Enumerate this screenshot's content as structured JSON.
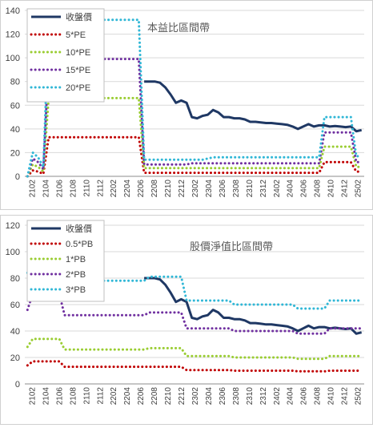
{
  "chart_data": [
    {
      "type": "line",
      "title": "本益比區間帶",
      "x_tick_labels": [
        "2102",
        "2104",
        "2106",
        "2108",
        "2110",
        "2112",
        "2202",
        "2204",
        "2206",
        "2208",
        "2210",
        "2212",
        "2302",
        "2304",
        "2306",
        "2308",
        "2310",
        "2312",
        "2402",
        "2404",
        "2406",
        "2408",
        "2410",
        "2412",
        "2502"
      ],
      "y_ticks": [
        0,
        20,
        40,
        60,
        80,
        100,
        120,
        140
      ],
      "ylim": [
        0,
        140
      ],
      "grid": true,
      "legend_position": "top-left",
      "series": [
        {
          "name": "收盤價",
          "color": "#1f3864",
          "style": "solid",
          "values": [
            null,
            null,
            null,
            null,
            null,
            null,
            null,
            null,
            null,
            null,
            null,
            null,
            null,
            null,
            null,
            null,
            null,
            null,
            null,
            null,
            null,
            null,
            80,
            80,
            80,
            79,
            75,
            69,
            62,
            64,
            62,
            50,
            49,
            51,
            52,
            56,
            54,
            50,
            50,
            49,
            49,
            48,
            46,
            46,
            45.5,
            45,
            45,
            44.5,
            44,
            43.5,
            42,
            40,
            42,
            44,
            42,
            43,
            43,
            42,
            42.5,
            42,
            41.5,
            42,
            38,
            39
          ]
        },
        {
          "name": "5*PE",
          "color": "#c00000",
          "style": "dotted",
          "values": [
            0,
            5,
            4,
            2,
            33,
            33,
            33,
            33,
            33,
            33,
            33,
            33,
            33,
            33,
            33,
            33,
            33,
            33,
            33,
            33,
            33,
            33,
            3,
            3,
            3,
            3,
            3,
            3,
            3,
            3,
            3,
            3,
            3,
            3,
            3,
            3,
            3,
            3,
            3,
            3,
            3,
            3,
            3,
            3,
            3,
            3,
            3,
            3,
            3,
            3,
            3,
            3,
            3,
            3,
            3,
            3,
            12,
            12,
            12,
            12,
            12,
            12,
            4,
            4
          ]
        },
        {
          "name": "10*PE",
          "color": "#9acd32",
          "style": "dotted",
          "values": [
            0,
            10,
            8,
            4,
            66,
            66,
            66,
            66,
            66,
            66,
            66,
            66,
            66,
            66,
            66,
            66,
            66,
            66,
            66,
            66,
            66,
            66,
            7,
            7,
            7,
            7,
            7,
            7,
            7,
            7,
            7,
            7,
            7,
            7,
            7,
            7,
            7,
            7,
            7,
            7,
            7,
            7,
            7,
            7,
            7,
            7,
            7,
            7,
            7,
            7,
            7,
            7,
            7,
            7,
            7,
            7,
            25,
            25,
            25,
            25,
            25,
            25,
            8,
            8
          ]
        },
        {
          "name": "15*PE",
          "color": "#7030a0",
          "style": "dotted",
          "values": [
            0,
            15,
            12,
            6,
            99,
            99,
            99,
            99,
            99,
            99,
            99,
            99,
            99,
            99,
            99,
            99,
            99,
            99,
            99,
            99,
            99,
            99,
            10,
            10,
            10,
            10,
            10,
            10,
            10,
            10,
            10,
            11,
            11,
            11,
            11,
            11,
            11,
            11,
            11,
            11,
            11,
            11,
            11,
            11,
            11,
            11,
            11,
            11,
            11,
            11,
            11,
            11,
            11,
            11,
            11,
            11,
            37,
            37,
            37,
            37,
            37,
            37,
            12,
            12
          ]
        },
        {
          "name": "20*PE",
          "color": "#31b7d6",
          "style": "dotted",
          "values": [
            0,
            20,
            16,
            8,
            132,
            132,
            132,
            132,
            132,
            132,
            132,
            132,
            132,
            132,
            132,
            132,
            132,
            132,
            132,
            132,
            132,
            132,
            14,
            14,
            14,
            14,
            14,
            14,
            14,
            14,
            14,
            14,
            14,
            14,
            15,
            16,
            16,
            16,
            16,
            16,
            16,
            16,
            16,
            16,
            16,
            16,
            16,
            16,
            16,
            16,
            16,
            16,
            16,
            16,
            16,
            16,
            50,
            50,
            50,
            50,
            50,
            50,
            17,
            17
          ]
        }
      ]
    },
    {
      "type": "line",
      "title": "股價淨值比區間帶",
      "x_tick_labels": [
        "2102",
        "2104",
        "2106",
        "2108",
        "2110",
        "2112",
        "2202",
        "2204",
        "2206",
        "2208",
        "2210",
        "2212",
        "2302",
        "2304",
        "2306",
        "2308",
        "2310",
        "2312",
        "2402",
        "2404",
        "2406",
        "2408",
        "2410",
        "2412",
        "2502"
      ],
      "y_ticks": [
        0,
        20,
        40,
        60,
        80,
        100,
        120
      ],
      "ylim": [
        0,
        120
      ],
      "grid": true,
      "legend_position": "top-left",
      "series": [
        {
          "name": "收盤價",
          "color": "#1f3864",
          "style": "solid",
          "values": [
            null,
            null,
            null,
            null,
            null,
            null,
            null,
            null,
            null,
            null,
            null,
            null,
            null,
            null,
            null,
            null,
            null,
            null,
            null,
            null,
            null,
            null,
            80,
            80,
            80,
            79,
            75,
            69,
            62,
            64,
            62,
            50,
            49,
            51,
            52,
            56,
            54,
            50,
            50,
            49,
            49,
            48,
            46,
            46,
            45.5,
            45,
            45,
            44.5,
            44,
            43.5,
            42,
            40,
            42,
            44,
            42,
            43,
            43,
            42,
            42.5,
            42,
            41.5,
            42,
            38,
            39
          ]
        },
        {
          "name": "0.5*PB",
          "color": "#c00000",
          "style": "dotted",
          "values": [
            14,
            17,
            17,
            17,
            17,
            17,
            17,
            13,
            13,
            13,
            13,
            13,
            13,
            13,
            13,
            13,
            13,
            13,
            13,
            13,
            13,
            13,
            13,
            13,
            13,
            13,
            13,
            13,
            13,
            13,
            10.5,
            10.5,
            10.5,
            10.5,
            10.5,
            10.5,
            10.5,
            10.5,
            10.5,
            10,
            10,
            10,
            10,
            10,
            10,
            10,
            10,
            10,
            10,
            10,
            10,
            9.5,
            9.5,
            9.5,
            9.5,
            9.5,
            9.5,
            10,
            10,
            10,
            10,
            10,
            10,
            10
          ]
        },
        {
          "name": "1*PB",
          "color": "#9acd32",
          "style": "dotted",
          "values": [
            28,
            34,
            34,
            34,
            34,
            34,
            34,
            26,
            26,
            26,
            26,
            26,
            26,
            26,
            26,
            26,
            26,
            26,
            26,
            26,
            26,
            26,
            26,
            27,
            27,
            27,
            27,
            27,
            27,
            27,
            21,
            21,
            21,
            21,
            21,
            21,
            21,
            21,
            21,
            20,
            20,
            20,
            20,
            20,
            20,
            20,
            20,
            20,
            20,
            20,
            20,
            19,
            19,
            19,
            19,
            19,
            19,
            21,
            21,
            21,
            21,
            21,
            21,
            21
          ]
        },
        {
          "name": "2*PB",
          "color": "#7030a0",
          "style": "dotted",
          "values": [
            56,
            68,
            68,
            68,
            68,
            68,
            68,
            52,
            52,
            52,
            52,
            52,
            52,
            52,
            52,
            52,
            52,
            52,
            52,
            52,
            52,
            52,
            52,
            54,
            54,
            54,
            54,
            54,
            54,
            54,
            42,
            42,
            42,
            42,
            42,
            42,
            42,
            42,
            42,
            40,
            40,
            40,
            40,
            40,
            40,
            40,
            40,
            40,
            40,
            40,
            40,
            38,
            38,
            38,
            38,
            38,
            38,
            42,
            42,
            42,
            42,
            42,
            42,
            42
          ]
        },
        {
          "name": "3*PB",
          "color": "#31b7d6",
          "style": "dotted",
          "values": [
            84,
            102,
            102,
            102,
            102,
            102,
            102,
            78,
            78,
            78,
            78,
            78,
            78,
            78,
            78,
            78,
            78,
            78,
            78,
            78,
            78,
            78,
            78,
            81,
            81,
            81,
            81,
            81,
            81,
            81,
            63,
            63,
            63,
            63,
            63,
            63,
            63,
            63,
            63,
            60,
            60,
            60,
            60,
            60,
            60,
            60,
            60,
            60,
            60,
            60,
            60,
            57,
            57,
            57,
            57,
            57,
            57,
            63,
            63,
            63,
            63,
            63,
            63,
            63
          ]
        }
      ]
    }
  ]
}
